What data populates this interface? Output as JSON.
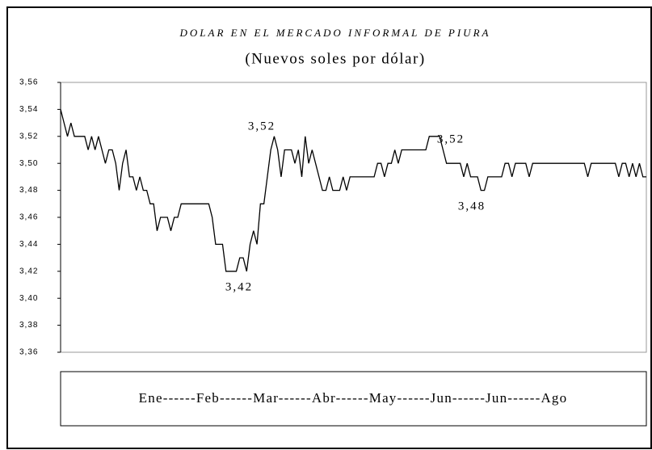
{
  "chart_data": {
    "type": "line",
    "title": "DOLAR EN EL MERCADO INFORMAL DE PIURA",
    "subtitle": "(Nuevos soles por dólar)",
    "x_axis_label": "Ene------Feb------Mar------Abr------May------Jun------Jun------Ago",
    "color": "#000000",
    "ylim": [
      3.36,
      3.56
    ],
    "yticks": [
      {
        "value": 3.36,
        "label": "3,36"
      },
      {
        "value": 3.38,
        "label": "3,38"
      },
      {
        "value": 3.4,
        "label": "3,40"
      },
      {
        "value": 3.42,
        "label": "3,42"
      },
      {
        "value": 3.44,
        "label": "3,44"
      },
      {
        "value": 3.46,
        "label": "3,46"
      },
      {
        "value": 3.48,
        "label": "3,48"
      },
      {
        "value": 3.5,
        "label": "3,50"
      },
      {
        "value": 3.52,
        "label": "3,52"
      },
      {
        "value": 3.54,
        "label": "3,54"
      },
      {
        "value": 3.56,
        "label": "3,56"
      }
    ],
    "values": [
      3.54,
      3.53,
      3.52,
      3.53,
      3.52,
      3.52,
      3.52,
      3.52,
      3.51,
      3.52,
      3.51,
      3.52,
      3.51,
      3.5,
      3.51,
      3.51,
      3.5,
      3.48,
      3.5,
      3.51,
      3.49,
      3.49,
      3.48,
      3.49,
      3.48,
      3.48,
      3.47,
      3.47,
      3.45,
      3.46,
      3.46,
      3.46,
      3.45,
      3.46,
      3.46,
      3.47,
      3.47,
      3.47,
      3.47,
      3.47,
      3.47,
      3.47,
      3.47,
      3.47,
      3.46,
      3.44,
      3.44,
      3.44,
      3.42,
      3.42,
      3.42,
      3.42,
      3.43,
      3.43,
      3.42,
      3.44,
      3.45,
      3.44,
      3.47,
      3.47,
      3.49,
      3.51,
      3.52,
      3.51,
      3.49,
      3.51,
      3.51,
      3.51,
      3.5,
      3.51,
      3.49,
      3.52,
      3.5,
      3.51,
      3.5,
      3.49,
      3.48,
      3.48,
      3.49,
      3.48,
      3.48,
      3.48,
      3.49,
      3.48,
      3.49,
      3.49,
      3.49,
      3.49,
      3.49,
      3.49,
      3.49,
      3.49,
      3.5,
      3.5,
      3.49,
      3.5,
      3.5,
      3.51,
      3.5,
      3.51,
      3.51,
      3.51,
      3.51,
      3.51,
      3.51,
      3.51,
      3.51,
      3.52,
      3.52,
      3.52,
      3.52,
      3.51,
      3.5,
      3.5,
      3.5,
      3.5,
      3.5,
      3.49,
      3.5,
      3.49,
      3.49,
      3.49,
      3.48,
      3.48,
      3.49,
      3.49,
      3.49,
      3.49,
      3.49,
      3.5,
      3.5,
      3.49,
      3.5,
      3.5,
      3.5,
      3.5,
      3.49,
      3.5,
      3.5,
      3.5,
      3.5,
      3.5,
      3.5,
      3.5,
      3.5,
      3.5,
      3.5,
      3.5,
      3.5,
      3.5,
      3.5,
      3.5,
      3.5,
      3.49,
      3.5,
      3.5,
      3.5,
      3.5,
      3.5,
      3.5,
      3.5,
      3.5,
      3.49,
      3.5,
      3.5,
      3.49,
      3.5,
      3.49,
      3.5,
      3.49,
      3.49
    ],
    "annotations": [
      {
        "label": "3,52",
        "value": 3.52
      },
      {
        "label": "3,42",
        "value": 3.42
      },
      {
        "label": "3,52",
        "value": 3.52
      },
      {
        "label": "3,48",
        "value": 3.48
      }
    ]
  }
}
